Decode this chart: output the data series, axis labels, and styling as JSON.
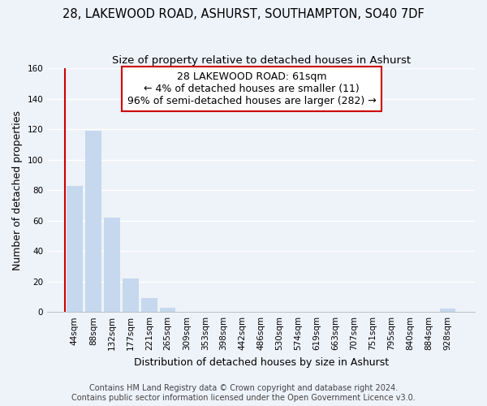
{
  "title": "28, LAKEWOOD ROAD, ASHURST, SOUTHAMPTON, SO40 7DF",
  "subtitle": "Size of property relative to detached houses in Ashurst",
  "xlabel": "Distribution of detached houses by size in Ashurst",
  "ylabel": "Number of detached properties",
  "bar_labels": [
    "44sqm",
    "88sqm",
    "132sqm",
    "177sqm",
    "221sqm",
    "265sqm",
    "309sqm",
    "353sqm",
    "398sqm",
    "442sqm",
    "486sqm",
    "530sqm",
    "574sqm",
    "619sqm",
    "663sqm",
    "707sqm",
    "751sqm",
    "795sqm",
    "840sqm",
    "884sqm",
    "928sqm"
  ],
  "bar_values": [
    83,
    119,
    62,
    22,
    9,
    3,
    0,
    0,
    0,
    0,
    0,
    0,
    0,
    0,
    0,
    0,
    0,
    0,
    0,
    0,
    2
  ],
  "bar_color": "#c5d8ee",
  "annotation_line1": "28 LAKEWOOD ROAD: 61sqm",
  "annotation_line2": "← 4% of detached houses are smaller (11)",
  "annotation_line3": "96% of semi-detached houses are larger (282) →",
  "annotation_box_color": "#ffffff",
  "annotation_box_edge_color": "#cc0000",
  "property_line_color": "#cc0000",
  "ylim": [
    0,
    160
  ],
  "yticks": [
    0,
    20,
    40,
    60,
    80,
    100,
    120,
    140,
    160
  ],
  "footer_line1": "Contains HM Land Registry data © Crown copyright and database right 2024.",
  "footer_line2": "Contains public sector information licensed under the Open Government Licence v3.0.",
  "bg_color": "#eef2f9",
  "grid_color": "#ffffff",
  "title_fontsize": 10.5,
  "subtitle_fontsize": 9.5,
  "axis_label_fontsize": 9,
  "tick_fontsize": 7.5,
  "annotation_fontsize": 9,
  "footer_fontsize": 7
}
